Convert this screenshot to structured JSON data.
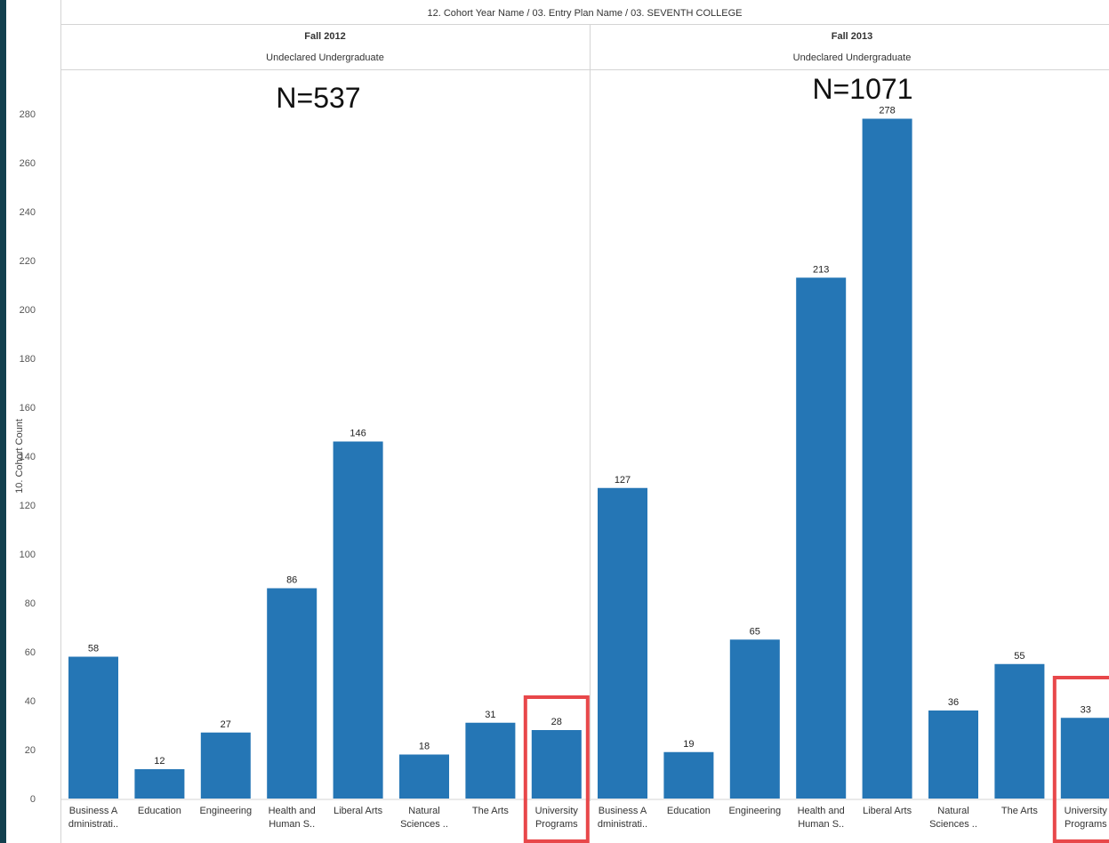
{
  "title": "12. Cohort Year Name  /  03. Entry Plan Name  /  03. SEVENTH COLLEGE",
  "ylabel": "10. Cohort Count",
  "colors": {
    "bar": "#2576b5",
    "highlight": "#e8474a",
    "strip": "#13404e"
  },
  "chart_data": {
    "type": "bar",
    "ylabel": "10. Cohort Count",
    "ylim": [
      0,
      280
    ],
    "yticks": [
      0,
      20,
      40,
      60,
      80,
      100,
      120,
      140,
      160,
      180,
      200,
      220,
      240,
      260,
      280
    ],
    "categories": [
      [
        "Business A",
        "dministrati.."
      ],
      [
        "Education"
      ],
      [
        "Engineering"
      ],
      [
        "Health and",
        "Human S.."
      ],
      [
        "Liberal Arts"
      ],
      [
        "Natural",
        "Sciences .."
      ],
      [
        "The Arts"
      ],
      [
        "University",
        "Programs"
      ]
    ],
    "panels": [
      {
        "year": "Fall 2012",
        "plan": "Undeclared Undergraduate",
        "n_label": "N=537",
        "values": [
          58,
          12,
          27,
          86,
          146,
          18,
          31,
          28
        ],
        "highlighted_category": "University Programs"
      },
      {
        "year": "Fall 2013",
        "plan": "Undeclared Undergraduate",
        "n_label": "N=1071",
        "values": [
          127,
          19,
          65,
          213,
          278,
          36,
          55,
          33
        ],
        "highlighted_category": "University Programs"
      }
    ]
  }
}
